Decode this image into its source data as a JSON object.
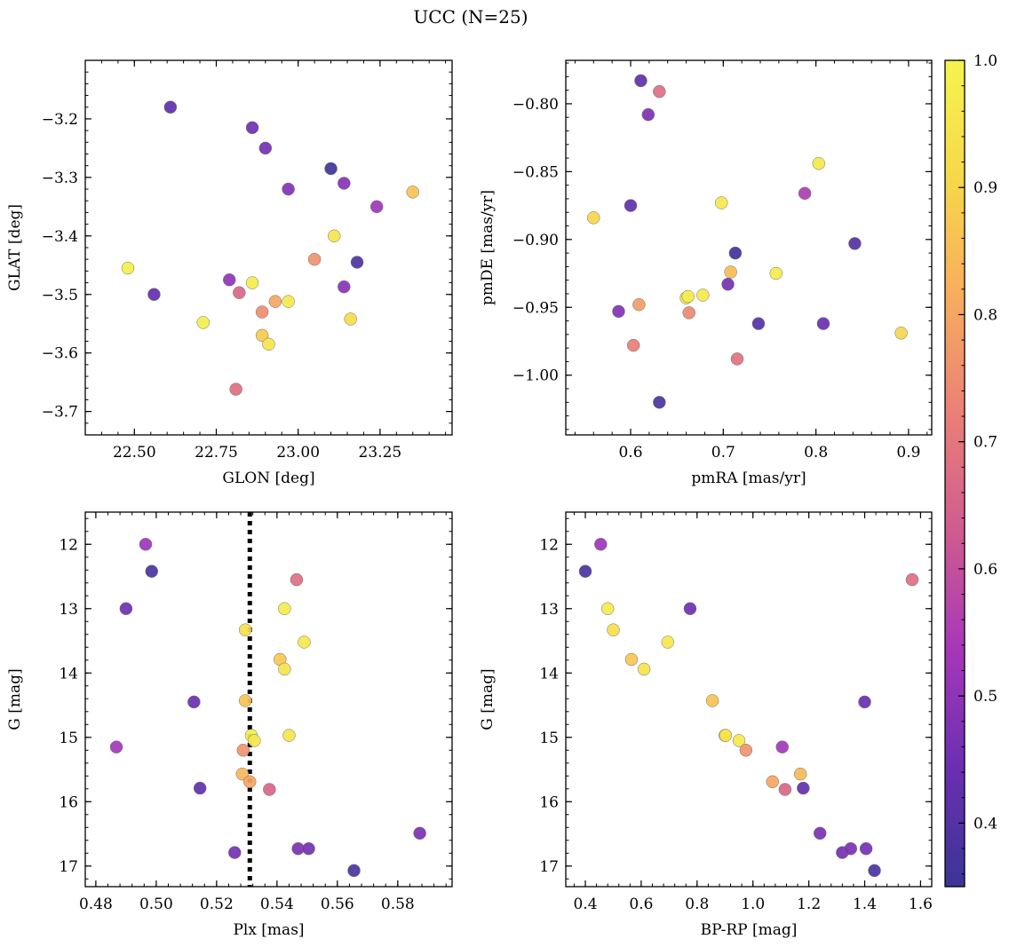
{
  "figure": {
    "title": "UCC (N=25)"
  },
  "colorbar": {
    "min": 0.35,
    "max": 1.0,
    "ticks": [
      0.4,
      0.5,
      0.6,
      0.7,
      0.8,
      0.9,
      1.0
    ],
    "tick_labels": [
      "0.4",
      "0.5",
      "0.6",
      "0.7",
      "0.8",
      "0.9",
      "1.0"
    ],
    "colormap": "plasma",
    "colormap_stops": [
      "#3b3596",
      "#6a2fb1",
      "#a637b9",
      "#cf5b8f",
      "#ea7f77",
      "#f8ac5e",
      "#f6d84a",
      "#f4f44e"
    ]
  },
  "chart_data": [
    {
      "type": "scatter",
      "xlabel": "GLON [deg]",
      "ylabel": "GLAT [deg]",
      "xlim": [
        22.35,
        23.47
      ],
      "ylim": [
        -3.74,
        -3.1
      ],
      "y_inverted": false,
      "xticks": [
        22.5,
        22.75,
        23.0,
        23.25
      ],
      "xtick_labels": [
        "22.50",
        "22.75",
        "23.00",
        "23.25"
      ],
      "yticks": [
        -3.2,
        -3.3,
        -3.4,
        -3.5,
        -3.6,
        -3.7
      ],
      "ytick_labels": [
        "−3.2",
        "−3.3",
        "−3.4",
        "−3.5",
        "−3.6",
        "−3.7"
      ],
      "vline": null,
      "points": [
        {
          "x": 22.61,
          "y": -3.18,
          "c": 0.42
        },
        {
          "x": 22.86,
          "y": -3.215,
          "c": 0.45
        },
        {
          "x": 22.9,
          "y": -3.25,
          "c": 0.46
        },
        {
          "x": 23.1,
          "y": -3.285,
          "c": 0.36
        },
        {
          "x": 22.97,
          "y": -3.32,
          "c": 0.48
        },
        {
          "x": 23.14,
          "y": -3.31,
          "c": 0.49
        },
        {
          "x": 23.35,
          "y": -3.325,
          "c": 0.86
        },
        {
          "x": 23.24,
          "y": -3.35,
          "c": 0.52
        },
        {
          "x": 23.11,
          "y": -3.4,
          "c": 0.95
        },
        {
          "x": 23.18,
          "y": -3.445,
          "c": 0.39
        },
        {
          "x": 23.05,
          "y": -3.44,
          "c": 0.76
        },
        {
          "x": 22.48,
          "y": -3.455,
          "c": 0.98
        },
        {
          "x": 22.56,
          "y": -3.5,
          "c": 0.43
        },
        {
          "x": 22.79,
          "y": -3.475,
          "c": 0.5
        },
        {
          "x": 22.86,
          "y": -3.48,
          "c": 0.97
        },
        {
          "x": 22.82,
          "y": -3.497,
          "c": 0.66
        },
        {
          "x": 23.14,
          "y": -3.487,
          "c": 0.49
        },
        {
          "x": 22.93,
          "y": -3.512,
          "c": 0.8
        },
        {
          "x": 22.97,
          "y": -3.512,
          "c": 0.96
        },
        {
          "x": 22.89,
          "y": -3.53,
          "c": 0.75
        },
        {
          "x": 23.16,
          "y": -3.542,
          "c": 0.92
        },
        {
          "x": 22.71,
          "y": -3.548,
          "c": 0.98
        },
        {
          "x": 22.89,
          "y": -3.57,
          "c": 0.88
        },
        {
          "x": 22.91,
          "y": -3.585,
          "c": 0.95
        },
        {
          "x": 22.81,
          "y": -3.662,
          "c": 0.68
        }
      ]
    },
    {
      "type": "scatter",
      "xlabel": "pmRA [mas/yr]",
      "ylabel": "pmDE [mas/yr]",
      "xlim": [
        0.53,
        0.925
      ],
      "ylim": [
        -1.044,
        -0.768
      ],
      "y_inverted": false,
      "xticks": [
        0.6,
        0.7,
        0.8,
        0.9
      ],
      "xtick_labels": [
        "0.6",
        "0.7",
        "0.8",
        "0.9"
      ],
      "yticks": [
        -0.8,
        -0.85,
        -0.9,
        -0.95,
        -1.0
      ],
      "ytick_labels": [
        "−0.80",
        "−0.85",
        "−0.90",
        "−0.95",
        "−1.00"
      ],
      "vline": null,
      "points": [
        {
          "x": 0.611,
          "y": -0.783,
          "c": 0.42
        },
        {
          "x": 0.631,
          "y": -0.791,
          "c": 0.68
        },
        {
          "x": 0.619,
          "y": -0.808,
          "c": 0.47
        },
        {
          "x": 0.803,
          "y": -0.844,
          "c": 0.96
        },
        {
          "x": 0.788,
          "y": -0.866,
          "c": 0.55
        },
        {
          "x": 0.56,
          "y": -0.884,
          "c": 0.9
        },
        {
          "x": 0.6,
          "y": -0.875,
          "c": 0.42
        },
        {
          "x": 0.698,
          "y": -0.873,
          "c": 0.96
        },
        {
          "x": 0.842,
          "y": -0.903,
          "c": 0.4
        },
        {
          "x": 0.713,
          "y": -0.91,
          "c": 0.36
        },
        {
          "x": 0.708,
          "y": -0.924,
          "c": 0.85
        },
        {
          "x": 0.757,
          "y": -0.925,
          "c": 0.97
        },
        {
          "x": 0.705,
          "y": -0.933,
          "c": 0.46
        },
        {
          "x": 0.66,
          "y": -0.943,
          "c": 0.95
        },
        {
          "x": 0.662,
          "y": -0.942,
          "c": 0.98
        },
        {
          "x": 0.678,
          "y": -0.941,
          "c": 0.96
        },
        {
          "x": 0.609,
          "y": -0.948,
          "c": 0.78
        },
        {
          "x": 0.587,
          "y": -0.953,
          "c": 0.48
        },
        {
          "x": 0.663,
          "y": -0.954,
          "c": 0.74
        },
        {
          "x": 0.738,
          "y": -0.962,
          "c": 0.4
        },
        {
          "x": 0.808,
          "y": -0.962,
          "c": 0.44
        },
        {
          "x": 0.892,
          "y": -0.969,
          "c": 0.9
        },
        {
          "x": 0.603,
          "y": -0.978,
          "c": 0.72
        },
        {
          "x": 0.715,
          "y": -0.988,
          "c": 0.69
        },
        {
          "x": 0.631,
          "y": -1.02,
          "c": 0.38
        }
      ]
    },
    {
      "type": "scatter",
      "xlabel": "Plx [mas]",
      "ylabel": "G [mag]",
      "xlim": [
        0.4765,
        0.598
      ],
      "ylim": [
        11.5,
        17.32
      ],
      "y_inverted": true,
      "xticks": [
        0.48,
        0.5,
        0.52,
        0.54,
        0.56,
        0.58
      ],
      "xtick_labels": [
        "0.48",
        "0.50",
        "0.52",
        "0.54",
        "0.56",
        "0.58"
      ],
      "yticks": [
        12,
        13,
        14,
        15,
        16,
        17
      ],
      "ytick_labels": [
        "12",
        "13",
        "14",
        "15",
        "16",
        "17"
      ],
      "vline": 0.531,
      "points": [
        {
          "x": 0.4965,
          "y": 12.0,
          "c": 0.52
        },
        {
          "x": 0.4985,
          "y": 12.42,
          "c": 0.38
        },
        {
          "x": 0.5465,
          "y": 12.55,
          "c": 0.68
        },
        {
          "x": 0.49,
          "y": 13.0,
          "c": 0.45
        },
        {
          "x": 0.5425,
          "y": 13.0,
          "c": 0.97
        },
        {
          "x": 0.5295,
          "y": 13.33,
          "c": 0.93
        },
        {
          "x": 0.549,
          "y": 13.52,
          "c": 0.96
        },
        {
          "x": 0.541,
          "y": 13.79,
          "c": 0.87
        },
        {
          "x": 0.5425,
          "y": 13.94,
          "c": 0.95
        },
        {
          "x": 0.5125,
          "y": 14.45,
          "c": 0.44
        },
        {
          "x": 0.5295,
          "y": 14.43,
          "c": 0.86
        },
        {
          "x": 0.5315,
          "y": 14.97,
          "c": 0.98
        },
        {
          "x": 0.544,
          "y": 14.97,
          "c": 0.95
        },
        {
          "x": 0.5325,
          "y": 15.05,
          "c": 0.96
        },
        {
          "x": 0.4868,
          "y": 15.15,
          "c": 0.53
        },
        {
          "x": 0.5288,
          "y": 15.2,
          "c": 0.76
        },
        {
          "x": 0.5285,
          "y": 15.57,
          "c": 0.84
        },
        {
          "x": 0.531,
          "y": 15.69,
          "c": 0.8
        },
        {
          "x": 0.5145,
          "y": 15.79,
          "c": 0.43
        },
        {
          "x": 0.5375,
          "y": 15.81,
          "c": 0.66
        },
        {
          "x": 0.5873,
          "y": 16.49,
          "c": 0.47
        },
        {
          "x": 0.526,
          "y": 16.79,
          "c": 0.46
        },
        {
          "x": 0.547,
          "y": 16.73,
          "c": 0.47
        },
        {
          "x": 0.5505,
          "y": 16.73,
          "c": 0.46
        },
        {
          "x": 0.5655,
          "y": 17.07,
          "c": 0.38
        }
      ]
    },
    {
      "type": "scatter",
      "xlabel": "BP-RP [mag]",
      "ylabel": "G [mag]",
      "xlim": [
        0.33,
        1.64
      ],
      "ylim": [
        11.5,
        17.32
      ],
      "y_inverted": true,
      "xticks": [
        0.4,
        0.6,
        0.8,
        1.0,
        1.2,
        1.4,
        1.6
      ],
      "xtick_labels": [
        "0.4",
        "0.6",
        "0.8",
        "1.0",
        "1.2",
        "1.4",
        "1.6"
      ],
      "yticks": [
        12,
        13,
        14,
        15,
        16,
        17
      ],
      "ytick_labels": [
        "12",
        "13",
        "14",
        "15",
        "16",
        "17"
      ],
      "vline": null,
      "points": [
        {
          "x": 0.455,
          "y": 12.0,
          "c": 0.52
        },
        {
          "x": 0.4,
          "y": 12.42,
          "c": 0.38
        },
        {
          "x": 1.57,
          "y": 12.55,
          "c": 0.68
        },
        {
          "x": 0.48,
          "y": 13.0,
          "c": 0.97
        },
        {
          "x": 0.775,
          "y": 13.0,
          "c": 0.45
        },
        {
          "x": 0.5,
          "y": 13.33,
          "c": 0.93
        },
        {
          "x": 0.695,
          "y": 13.52,
          "c": 0.96
        },
        {
          "x": 0.565,
          "y": 13.79,
          "c": 0.87
        },
        {
          "x": 0.61,
          "y": 13.94,
          "c": 0.95
        },
        {
          "x": 0.855,
          "y": 14.43,
          "c": 0.86
        },
        {
          "x": 1.4,
          "y": 14.45,
          "c": 0.44
        },
        {
          "x": 0.9,
          "y": 14.97,
          "c": 0.98
        },
        {
          "x": 0.902,
          "y": 14.97,
          "c": 0.93
        },
        {
          "x": 0.95,
          "y": 15.05,
          "c": 0.96
        },
        {
          "x": 1.105,
          "y": 15.15,
          "c": 0.53
        },
        {
          "x": 0.975,
          "y": 15.2,
          "c": 0.76
        },
        {
          "x": 1.17,
          "y": 15.57,
          "c": 0.84
        },
        {
          "x": 1.07,
          "y": 15.69,
          "c": 0.8
        },
        {
          "x": 1.18,
          "y": 15.79,
          "c": 0.43
        },
        {
          "x": 1.115,
          "y": 15.81,
          "c": 0.66
        },
        {
          "x": 1.24,
          "y": 16.49,
          "c": 0.47
        },
        {
          "x": 1.32,
          "y": 16.79,
          "c": 0.46
        },
        {
          "x": 1.35,
          "y": 16.73,
          "c": 0.47
        },
        {
          "x": 1.405,
          "y": 16.73,
          "c": 0.46
        },
        {
          "x": 1.435,
          "y": 17.07,
          "c": 0.38
        }
      ]
    }
  ]
}
